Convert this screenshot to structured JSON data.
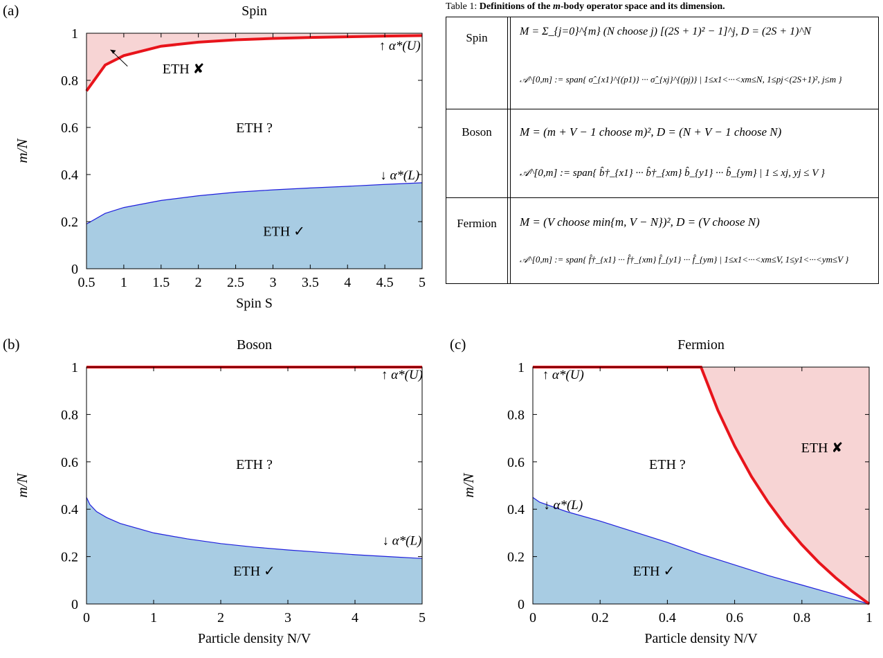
{
  "panel_labels": [
    "(a)",
    "(b)",
    "(c)"
  ],
  "table": {
    "caption_prefix": "Table 1: ",
    "caption_bold": "Definitions of the ",
    "caption_var": "m",
    "caption_rest": "-body operator space and its dimension.",
    "rows": [
      {
        "label": "Spin",
        "line1": "M = Σ_{j=0}^{m} (N choose j) [(2S + 1)² − 1]^j,    D = (2S + 1)^N",
        "line2": "𝒜^[0,m] := span{ σ̂_{x1}^{(p1)} ··· σ̂_{xj}^{(pj)} | 1≤x1<···<xm≤N, 1≤pj<(2S+1)², j≤m }"
      },
      {
        "label": "Boson",
        "line1": "M = (m + V − 1 choose m)²,    D = (N + V − 1 choose N)",
        "line2": "𝒜^[0,m] := span{ b̂†_{x1} ··· b̂†_{xm} b̂_{y1} ··· b̂_{ym} | 1 ≤ xj, yj ≤ V }"
      },
      {
        "label": "Fermion",
        "line1": "M = (V choose min{m, V − N})²,    D = (V choose N)",
        "line2": "𝒜^[0,m] := span{ f̂†_{x1} ··· f̂†_{xm} f̂_{y1} ··· f̂_{ym} | 1≤x1<···<xm≤V, 1≤y1<···<ym≤V }"
      }
    ]
  },
  "chart_data": [
    {
      "type": "area",
      "panel": "(a)",
      "title": "Spin",
      "xlabel": "Spin S",
      "ylabel": "m/N",
      "xlim": [
        0.5,
        5
      ],
      "ylim": [
        0,
        1
      ],
      "xticks": [
        "0.5",
        "1",
        "1.5",
        "2",
        "2.5",
        "3",
        "3.5",
        "4",
        "4.5",
        "5"
      ],
      "yticks": [
        "0",
        "0.2",
        "0.4",
        "0.6",
        "0.8",
        "1"
      ],
      "series": [
        {
          "name": "α*(U)",
          "color": "#e8141b",
          "x": [
            0.5,
            0.75,
            1,
            1.5,
            2,
            2.5,
            3,
            3.5,
            4,
            4.5,
            5
          ],
          "y": [
            0.755,
            0.865,
            0.905,
            0.945,
            0.962,
            0.972,
            0.978,
            0.982,
            0.985,
            0.988,
            0.99
          ]
        },
        {
          "name": "α*(L)",
          "color": "#1f1fdd",
          "x": [
            0.5,
            0.75,
            1,
            1.5,
            2,
            2.5,
            3,
            3.5,
            4,
            4.5,
            5
          ],
          "y": [
            0.19,
            0.235,
            0.26,
            0.29,
            0.31,
            0.325,
            0.335,
            0.343,
            0.35,
            0.358,
            0.365
          ]
        }
      ],
      "annotations": {
        "upper": "ETH ✘",
        "middle": "ETH ?",
        "lower": "ETH ✓",
        "upper_label": "↑ α*(U)",
        "lower_label": "↓ α*(L)"
      }
    },
    {
      "type": "area",
      "panel": "(b)",
      "title": "Boson",
      "xlabel": "Particle density N/V",
      "ylabel": "m/N",
      "xlim": [
        0,
        5
      ],
      "ylim": [
        0,
        1
      ],
      "xticks": [
        "0",
        "1",
        "2",
        "3",
        "4",
        "5"
      ],
      "yticks": [
        "0",
        "0.2",
        "0.4",
        "0.6",
        "0.8",
        "1"
      ],
      "series": [
        {
          "name": "α*(U)",
          "color": "#e8141b",
          "x": [
            0,
            5
          ],
          "y": [
            1,
            1
          ]
        },
        {
          "name": "α*(L)",
          "color": "#1f1fdd",
          "x": [
            0,
            0.05,
            0.15,
            0.3,
            0.5,
            1,
            1.5,
            2,
            2.5,
            3,
            3.5,
            4,
            4.5,
            5
          ],
          "y": [
            0.45,
            0.42,
            0.39,
            0.365,
            0.34,
            0.3,
            0.275,
            0.255,
            0.24,
            0.228,
            0.218,
            0.208,
            0.2,
            0.192
          ]
        }
      ],
      "annotations": {
        "middle": "ETH ?",
        "lower": "ETH ✓",
        "upper_label": "↑ α*(U)",
        "lower_label": "↓ α*(L)"
      }
    },
    {
      "type": "area",
      "panel": "(c)",
      "title": "Fermion",
      "xlabel": "Particle density N/V",
      "ylabel": "m/N",
      "xlim": [
        0,
        1
      ],
      "ylim": [
        0,
        1
      ],
      "xticks": [
        "0",
        "0.2",
        "0.4",
        "0.6",
        "0.8",
        "1"
      ],
      "yticks": [
        "0",
        "0.2",
        "0.4",
        "0.6",
        "0.8",
        "1"
      ],
      "series": [
        {
          "name": "α*(U)",
          "color": "#e8141b",
          "x": [
            0,
            0.5,
            0.55,
            0.6,
            0.65,
            0.7,
            0.75,
            0.8,
            0.85,
            0.9,
            0.95,
            1
          ],
          "y": [
            1,
            1,
            0.818,
            0.667,
            0.538,
            0.429,
            0.333,
            0.25,
            0.176,
            0.111,
            0.053,
            0
          ]
        },
        {
          "name": "α*(L)",
          "color": "#1f1fdd",
          "x": [
            0,
            0.02,
            0.1,
            0.2,
            0.3,
            0.4,
            0.5,
            0.6,
            0.7,
            0.8,
            0.9,
            1
          ],
          "y": [
            0.45,
            0.43,
            0.39,
            0.35,
            0.305,
            0.26,
            0.21,
            0.165,
            0.12,
            0.08,
            0.04,
            0
          ]
        }
      ],
      "annotations": {
        "upper": "ETH ✘",
        "middle": "ETH ?",
        "lower": "ETH ✓",
        "upper_label": "↑ α*(U)",
        "lower_label": "↓ α*(L)"
      }
    }
  ],
  "colors": {
    "upper_fill": "#f7d4d4",
    "lower_fill": "#a8cce3",
    "upper_line": "#e8141b",
    "lower_line": "#1f1fdd"
  }
}
